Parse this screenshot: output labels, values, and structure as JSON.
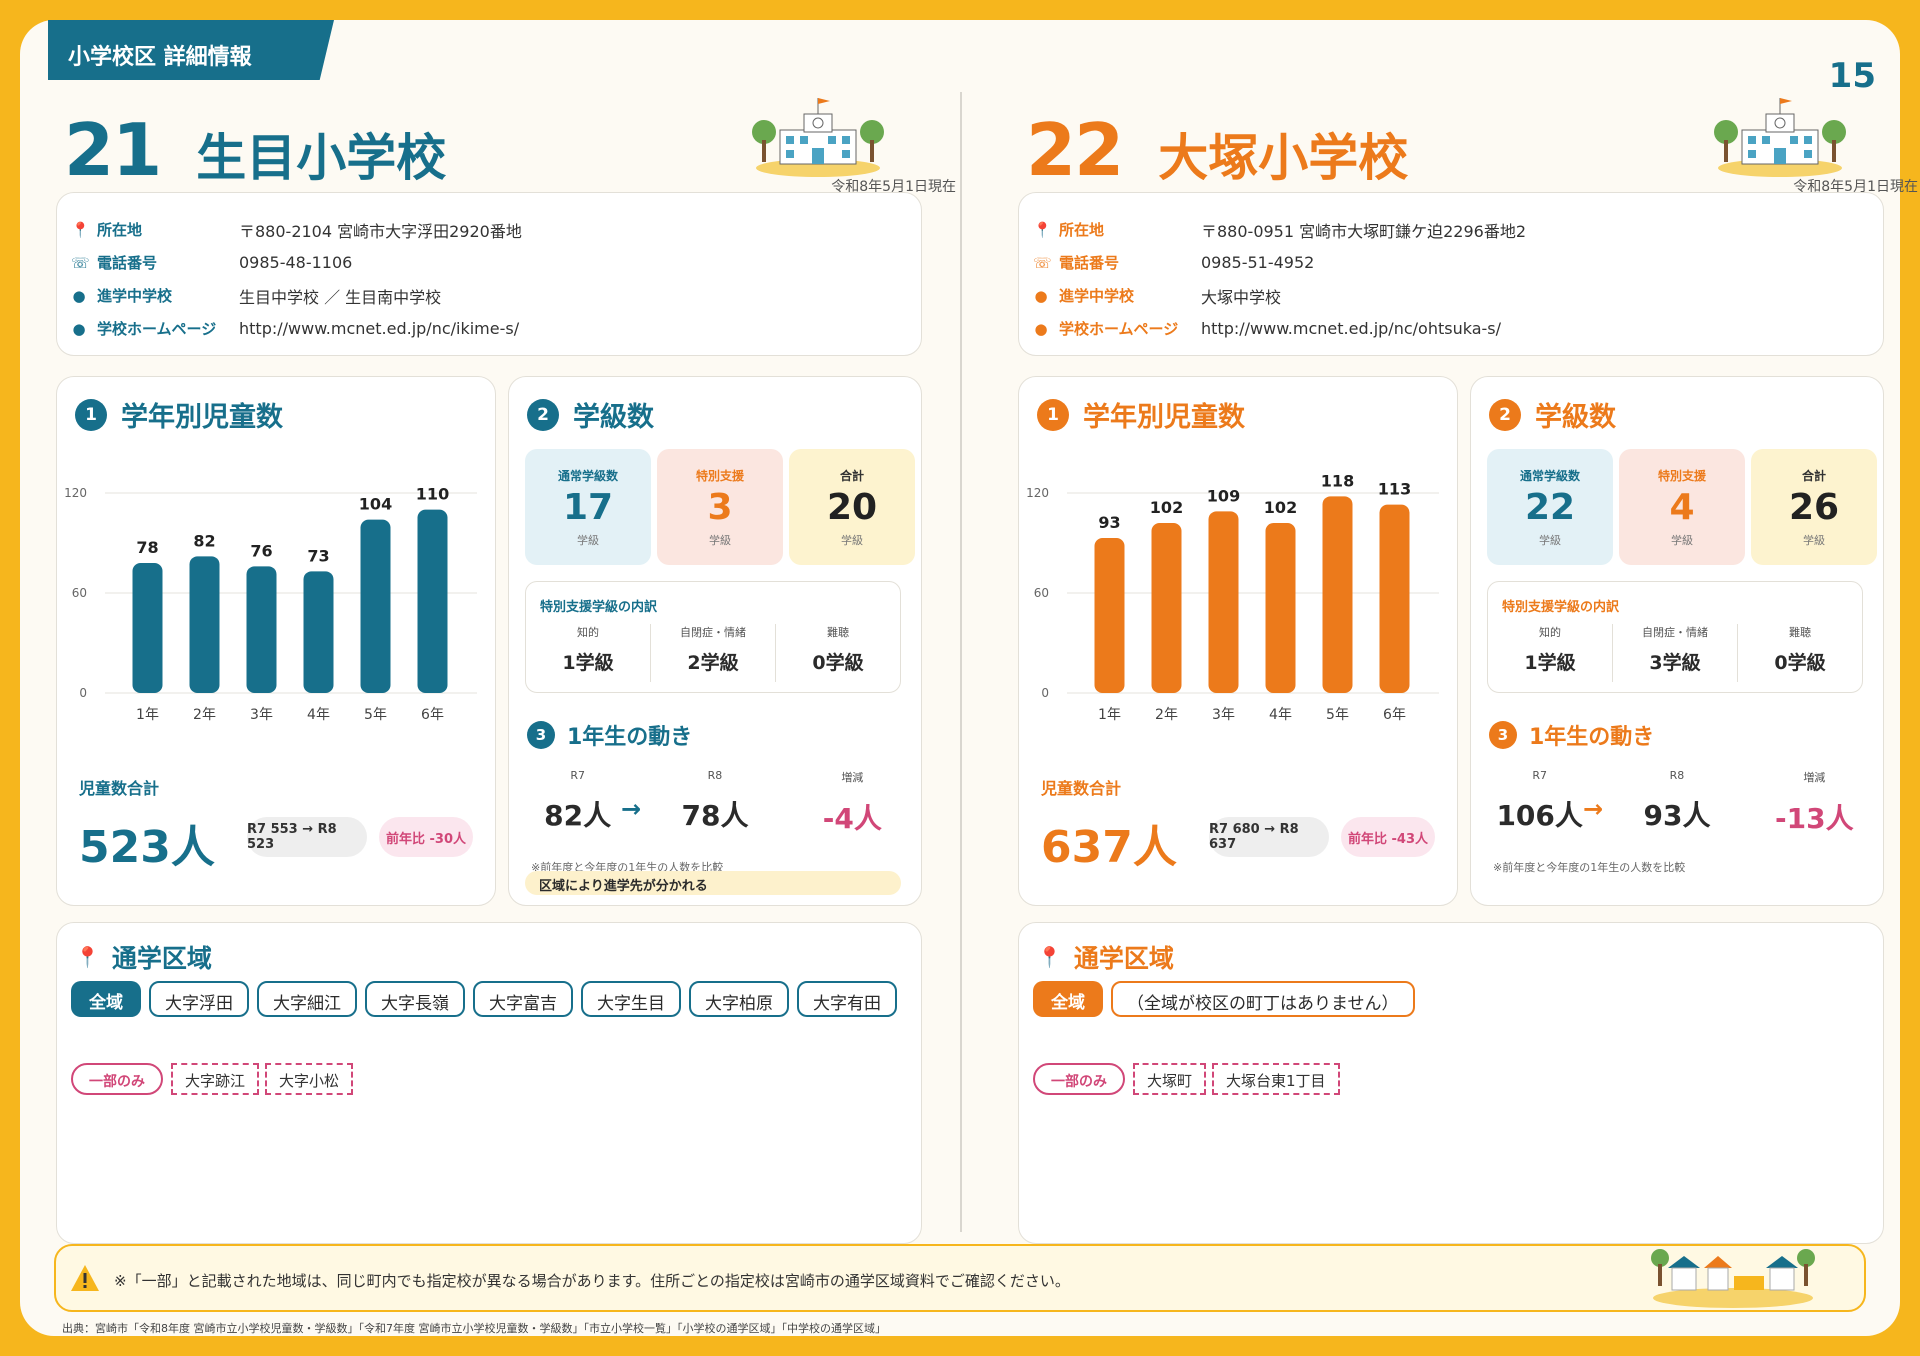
{
  "header": {
    "tab_label": "小学校区 詳細情報",
    "page_number": "15"
  },
  "schools": [
    {
      "number": "21",
      "name": "生目小学校",
      "accent": "#176f8b",
      "as_of": "令和8年5月1日現在",
      "info": [
        {
          "label": "所在地",
          "value": "〒880-2104 宮崎市大字浮田2920番地"
        },
        {
          "label": "電話番号",
          "value": "0985-48-1106"
        },
        {
          "label": "進学中学校",
          "value": "生目中学校 ／ 生目南中学校"
        },
        {
          "label": "学校ホームページ",
          "value": "http://www.mcnet.ed.jp/nc/ikime-s/"
        }
      ],
      "students": {
        "badge": "1",
        "title": "学年別児童数",
        "total_label": "児童数合計",
        "total": "523人",
        "compare": "R7 553 → R8 523",
        "yoy": "前年比 -30人"
      },
      "chart_data": {
        "type": "bar",
        "categories": [
          "1年",
          "2年",
          "3年",
          "4年",
          "5年",
          "6年"
        ],
        "values": [
          78,
          82,
          76,
          73,
          104,
          110
        ],
        "ylim": [
          0,
          120
        ],
        "yticks": [
          0,
          60,
          120
        ]
      },
      "classes": {
        "badge": "2",
        "title": "学級数",
        "boxes": [
          {
            "label": "通常学級数",
            "value": "17",
            "unit": "学級"
          },
          {
            "label": "特別支援",
            "value": "3",
            "unit": "学級"
          },
          {
            "label": "合計",
            "value": "20",
            "unit": "学級"
          }
        ],
        "breakdown_title": "特別支援学級の内訳",
        "breakdown": [
          {
            "label": "知的",
            "value": "1学級"
          },
          {
            "label": "自閉症・情緒",
            "value": "2学級"
          },
          {
            "label": "難聴",
            "value": "0学級"
          }
        ]
      },
      "movement": {
        "badge": "3",
        "title": "1年生の動き",
        "cols": [
          {
            "label": "R7",
            "value": "82人"
          },
          {
            "label": "R8",
            "value": "78人"
          },
          {
            "label": "増減",
            "value": "-4人"
          }
        ],
        "arrow": "→",
        "note": "※前年度と今年度の1年生の人数を比較",
        "divergence": "区域により進学先が分かれる"
      },
      "zone": {
        "title": "通学区域",
        "all_label": "全域",
        "all_tags": [
          "大字浮田",
          "大字細江",
          "大字長嶺",
          "大字富吉",
          "大字生目",
          "大字柏原",
          "大字有田"
        ],
        "partial_label": "一部のみ",
        "partial_tags": [
          "大字跡江",
          "大字小松"
        ]
      }
    },
    {
      "number": "22",
      "name": "大塚小学校",
      "accent": "#ec7a1b",
      "as_of": "令和8年5月1日現在",
      "info": [
        {
          "label": "所在地",
          "value": "〒880-0951 宮崎市大塚町鎌ケ迫2296番地2"
        },
        {
          "label": "電話番号",
          "value": "0985-51-4952"
        },
        {
          "label": "進学中学校",
          "value": "大塚中学校"
        },
        {
          "label": "学校ホームページ",
          "value": "http://www.mcnet.ed.jp/nc/ohtsuka-s/"
        }
      ],
      "students": {
        "badge": "1",
        "title": "学年別児童数",
        "total_label": "児童数合計",
        "total": "637人",
        "compare": "R7 680 → R8 637",
        "yoy": "前年比 -43人"
      },
      "chart_data": {
        "type": "bar",
        "categories": [
          "1年",
          "2年",
          "3年",
          "4年",
          "5年",
          "6年"
        ],
        "values": [
          93,
          102,
          109,
          102,
          118,
          113
        ],
        "ylim": [
          0,
          120
        ],
        "yticks": [
          0,
          60,
          120
        ]
      },
      "classes": {
        "badge": "2",
        "title": "学級数",
        "boxes": [
          {
            "label": "通常学級数",
            "value": "22",
            "unit": "学級"
          },
          {
            "label": "特別支援",
            "value": "4",
            "unit": "学級"
          },
          {
            "label": "合計",
            "value": "26",
            "unit": "学級"
          }
        ],
        "breakdown_title": "特別支援学級の内訳",
        "breakdown": [
          {
            "label": "知的",
            "value": "1学級"
          },
          {
            "label": "自閉症・情緒",
            "value": "3学級"
          },
          {
            "label": "難聴",
            "value": "0学級"
          }
        ]
      },
      "movement": {
        "badge": "3",
        "title": "1年生の動き",
        "cols": [
          {
            "label": "R7",
            "value": "106人"
          },
          {
            "label": "R8",
            "value": "93人"
          },
          {
            "label": "増減",
            "value": "-13人"
          }
        ],
        "arrow": "→",
        "note": "※前年度と今年度の1年生の人数を比較",
        "divergence": ""
      },
      "zone": {
        "title": "通学区域",
        "all_label": "全域",
        "all_tags": [
          "（全域が校区の町丁はありません）"
        ],
        "partial_label": "一部のみ",
        "partial_tags": [
          "大塚町",
          "大塚台東1丁目"
        ]
      }
    }
  ],
  "footer": {
    "note": "※「一部」と記載された地域は、同じ町内でも指定校が異なる場合があります。住所ごとの指定校は宮崎市の通学区域資料でご確認ください。",
    "source": "出典：宮崎市「令和8年度 宮崎市立小学校児童数・学級数」「令和7年度 宮崎市立小学校児童数・学級数」「市立小学校一覧」「小学校の通学区域」「中学校の通学区域」"
  },
  "colors": {
    "pink": "#d14778",
    "blue_box": "#e3f1f6",
    "pink_box": "#fbe6e0",
    "yellow_box": "#fdf3cf"
  }
}
